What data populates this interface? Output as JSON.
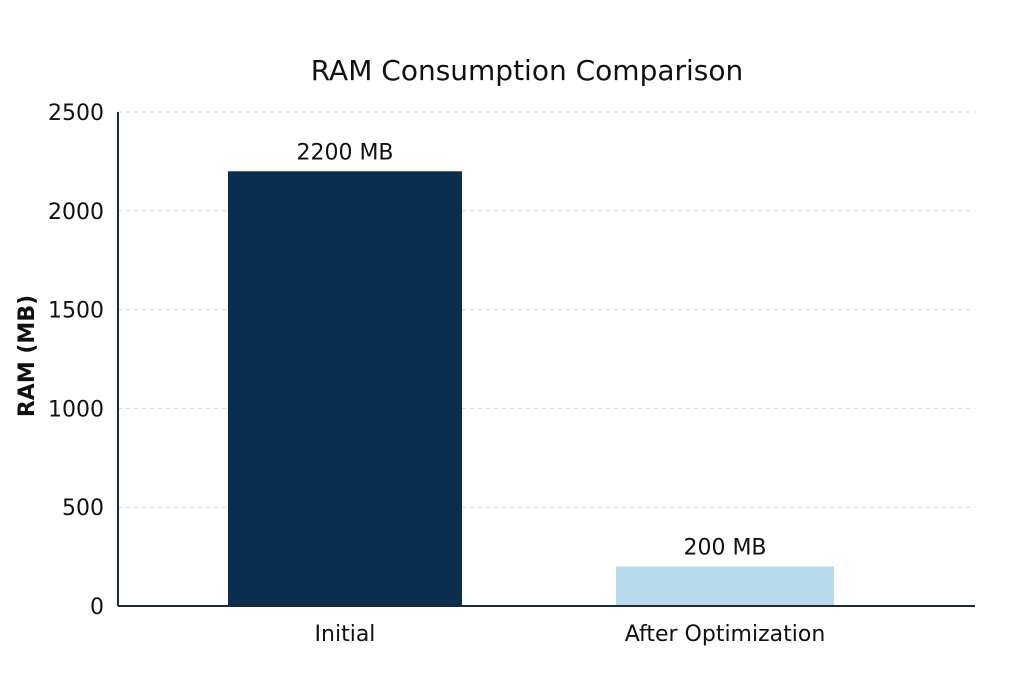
{
  "chart_data": {
    "type": "bar",
    "title": "RAM Consumption Comparison",
    "xlabel": "",
    "ylabel": "RAM (MB)",
    "categories": [
      "Initial",
      "After Optimization"
    ],
    "values": [
      2200,
      200
    ],
    "data_labels": [
      "2200 MB",
      "200 MB"
    ],
    "colors": [
      "#0b2e4e",
      "#b9d9ec"
    ],
    "ylim": [
      0,
      2500
    ],
    "yticks": [
      0,
      500,
      1000,
      1500,
      2000,
      2500
    ],
    "grid": true,
    "grid_axis": "y",
    "axis_color": "#1a2a3a"
  }
}
